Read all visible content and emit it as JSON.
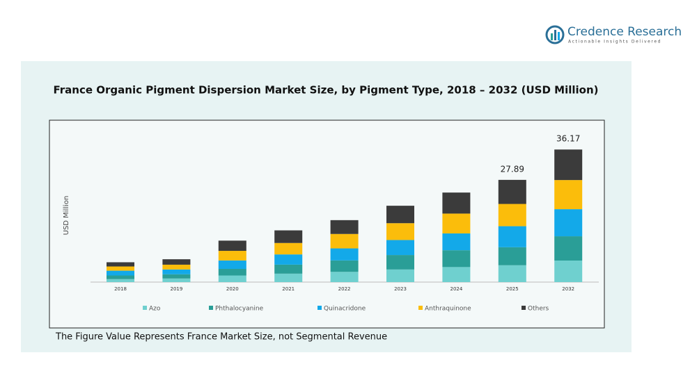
{
  "header": {
    "brand": "Credence Research",
    "tagline": "Actionable Insights Delivered"
  },
  "chart_data": {
    "type": "stacked-bar",
    "title": "France Organic Pigment Dispersion Market Size, by Pigment Type, 2018 – 2032 (USD Million)",
    "y_label": "USD Million",
    "note": "The Figure Value Represents France Market Size, not Segmental Revenue",
    "categories": [
      "2018",
      "2019",
      "2020",
      "2021",
      "2022",
      "2023",
      "2024",
      "2025",
      "2032"
    ],
    "ylim": [
      0,
      40
    ],
    "series": [
      {
        "name": "Azo",
        "color": "#6fd0cf",
        "values": [
          0.82,
          0.98,
          1.8,
          2.3,
          2.79,
          3.44,
          4.1,
          4.59,
          5.87
        ]
      },
      {
        "name": "Phthalocyanine",
        "color": "#2a9e97",
        "values": [
          0.98,
          1.15,
          1.8,
          2.46,
          3.12,
          3.94,
          4.59,
          4.92,
          6.63
        ]
      },
      {
        "name": "Quinacridone",
        "color": "#13a9e9",
        "values": [
          1.31,
          1.31,
          2.3,
          2.79,
          3.28,
          4.1,
          4.59,
          5.74,
          7.39
        ]
      },
      {
        "name": "Anthraquinone",
        "color": "#fbbd0b",
        "values": [
          1.15,
          1.31,
          2.62,
          3.12,
          3.94,
          4.59,
          5.41,
          6.07,
          7.95
        ]
      },
      {
        "name": "Others",
        "color": "#3b3b3b",
        "values": [
          1.15,
          1.48,
          2.79,
          3.44,
          3.77,
          4.76,
          5.74,
          6.57,
          8.33
        ]
      }
    ],
    "totals": [
      null,
      null,
      null,
      null,
      null,
      null,
      null,
      27.89,
      36.17
    ]
  }
}
